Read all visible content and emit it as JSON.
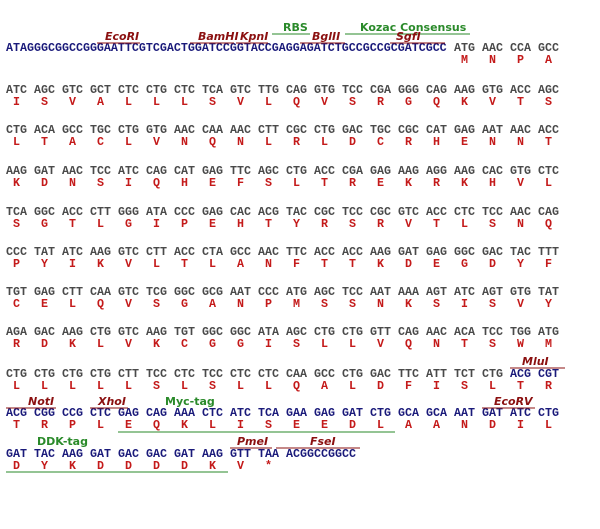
{
  "sequence": {
    "leader": "ATAGGGCGGCCGGGAATTCGTCGACTGGATCCGGTACCGAGGAGATCTGCCGCCGCGATCGCC",
    "rows": [
      {
        "codons": [
          "ATG",
          "AAC",
          "CCA",
          "GCC"
        ],
        "amino_acids": [
          "M",
          "N",
          "P",
          "A"
        ]
      },
      {
        "codons": [
          "ATC",
          "AGC",
          "GTC",
          "GCT",
          "CTC",
          "CTG",
          "CTC",
          "TCA",
          "GTC",
          "TTG",
          "CAG",
          "GTG",
          "TCC",
          "CGA",
          "GGG",
          "CAG",
          "AAG",
          "GTG",
          "ACC",
          "AGC"
        ],
        "amino_acids": [
          "I",
          "S",
          "V",
          "A",
          "L",
          "L",
          "L",
          "S",
          "V",
          "L",
          "Q",
          "V",
          "S",
          "R",
          "G",
          "Q",
          "K",
          "V",
          "T",
          "S"
        ]
      },
      {
        "codons": [
          "CTG",
          "ACA",
          "GCC",
          "TGC",
          "CTG",
          "GTG",
          "AAC",
          "CAA",
          "AAC",
          "CTT",
          "CGC",
          "CTG",
          "GAC",
          "TGC",
          "CGC",
          "CAT",
          "GAG",
          "AAT",
          "AAC",
          "ACC"
        ],
        "amino_acids": [
          "L",
          "T",
          "A",
          "C",
          "L",
          "V",
          "N",
          "Q",
          "N",
          "L",
          "R",
          "L",
          "D",
          "C",
          "R",
          "H",
          "E",
          "N",
          "N",
          "T"
        ]
      },
      {
        "codons": [
          "AAG",
          "GAT",
          "AAC",
          "TCC",
          "ATC",
          "CAG",
          "CAT",
          "GAG",
          "TTC",
          "AGC",
          "CTG",
          "ACC",
          "CGA",
          "GAG",
          "AAG",
          "AGG",
          "AAG",
          "CAC",
          "GTG",
          "CTC"
        ],
        "amino_acids": [
          "K",
          "D",
          "N",
          "S",
          "I",
          "Q",
          "H",
          "E",
          "F",
          "S",
          "L",
          "T",
          "R",
          "E",
          "K",
          "R",
          "K",
          "H",
          "V",
          "L"
        ]
      },
      {
        "codons": [
          "TCA",
          "GGC",
          "ACC",
          "CTT",
          "GGG",
          "ATA",
          "CCC",
          "GAG",
          "CAC",
          "ACG",
          "TAC",
          "CGC",
          "TCC",
          "CGC",
          "GTC",
          "ACC",
          "CTC",
          "TCC",
          "AAC",
          "CAG"
        ],
        "amino_acids": [
          "S",
          "G",
          "T",
          "L",
          "G",
          "I",
          "P",
          "E",
          "H",
          "T",
          "Y",
          "R",
          "S",
          "R",
          "V",
          "T",
          "L",
          "S",
          "N",
          "Q"
        ]
      },
      {
        "codons": [
          "CCC",
          "TAT",
          "ATC",
          "AAG",
          "GTC",
          "CTT",
          "ACC",
          "CTA",
          "GCC",
          "AAC",
          "TTC",
          "ACC",
          "ACC",
          "AAG",
          "GAT",
          "GAG",
          "GGC",
          "GAC",
          "TAC",
          "TTT"
        ],
        "amino_acids": [
          "P",
          "Y",
          "I",
          "K",
          "V",
          "L",
          "T",
          "L",
          "A",
          "N",
          "F",
          "T",
          "T",
          "K",
          "D",
          "E",
          "G",
          "D",
          "Y",
          "F"
        ]
      },
      {
        "codons": [
          "TGT",
          "GAG",
          "CTT",
          "CAA",
          "GTC",
          "TCG",
          "GGC",
          "GCG",
          "AAT",
          "CCC",
          "ATG",
          "AGC",
          "TCC",
          "AAT",
          "AAA",
          "AGT",
          "ATC",
          "AGT",
          "GTG",
          "TAT"
        ],
        "amino_acids": [
          "C",
          "E",
          "L",
          "Q",
          "V",
          "S",
          "G",
          "A",
          "N",
          "P",
          "M",
          "S",
          "S",
          "N",
          "K",
          "S",
          "I",
          "S",
          "V",
          "Y"
        ]
      },
      {
        "codons": [
          "AGA",
          "GAC",
          "AAG",
          "CTG",
          "GTC",
          "AAG",
          "TGT",
          "GGC",
          "GGC",
          "ATA",
          "AGC",
          "CTG",
          "CTG",
          "GTT",
          "CAG",
          "AAC",
          "ACA",
          "TCC",
          "TGG",
          "ATG"
        ],
        "amino_acids": [
          "R",
          "D",
          "K",
          "L",
          "V",
          "K",
          "C",
          "G",
          "G",
          "I",
          "S",
          "L",
          "L",
          "V",
          "Q",
          "N",
          "T",
          "S",
          "W",
          "M"
        ]
      },
      {
        "codons": [
          "CTG",
          "CTG",
          "CTG",
          "CTG",
          "CTT",
          "TCC",
          "CTC",
          "TCC",
          "CTC",
          "CTC",
          "CAA",
          "GCC",
          "CTG",
          "GAC",
          "TTC",
          "ATT",
          "TCT",
          "CTG",
          "ACG",
          "CGT"
        ],
        "amino_acids": [
          "L",
          "L",
          "L",
          "L",
          "L",
          "S",
          "L",
          "S",
          "L",
          "L",
          "Q",
          "A",
          "L",
          "D",
          "F",
          "I",
          "S",
          "L",
          "T",
          "R"
        ]
      },
      {
        "codons": [
          "ACG",
          "CGG",
          "CCG",
          "CTC",
          "GAG",
          "CAG",
          "AAA",
          "CTC",
          "ATC",
          "TCA",
          "GAA",
          "GAG",
          "GAT",
          "CTG",
          "GCA",
          "GCA",
          "AAT",
          "GAT",
          "ATC",
          "CTG"
        ],
        "amino_acids": [
          "T",
          "R",
          "P",
          "L",
          "E",
          "Q",
          "K",
          "L",
          "I",
          "S",
          "E",
          "E",
          "D",
          "L",
          "A",
          "A",
          "N",
          "D",
          "I",
          "L"
        ]
      },
      {
        "codons": [
          "GAT",
          "TAC",
          "AAG",
          "GAT",
          "GAC",
          "GAC",
          "GAT",
          "AAG",
          "GTT",
          "TAA"
        ],
        "amino_acids": [
          "D",
          "Y",
          "K",
          "D",
          "D",
          "D",
          "D",
          "K",
          "V",
          "*"
        ]
      }
    ],
    "trailer": "ACGGCCGGCC"
  },
  "annotations": [
    {
      "label": "RBS",
      "color": "#2a8a2a"
    },
    {
      "label": "Kozac Consensus",
      "color": "#2a8a2a"
    },
    {
      "label": "EcoRI",
      "color": "#8b1010"
    },
    {
      "label": "BamHI",
      "color": "#8b1010"
    },
    {
      "label": "KpnI",
      "color": "#8b1010"
    },
    {
      "label": "BglII",
      "color": "#8b1010"
    },
    {
      "label": "SgfI",
      "color": "#8b1010"
    },
    {
      "label": "MluI",
      "color": "#8b1010"
    },
    {
      "label": "NotI",
      "color": "#8b1010"
    },
    {
      "label": "XhoI",
      "color": "#8b1010"
    },
    {
      "label": "Myc-tag",
      "color": "#2a8a2a"
    },
    {
      "label": "EcoRV",
      "color": "#8b1010"
    },
    {
      "label": "DDK-tag",
      "color": "#2a8a2a"
    },
    {
      "label": "PmeI",
      "color": "#8b1010"
    },
    {
      "label": "FseI",
      "color": "#8b1010"
    }
  ]
}
